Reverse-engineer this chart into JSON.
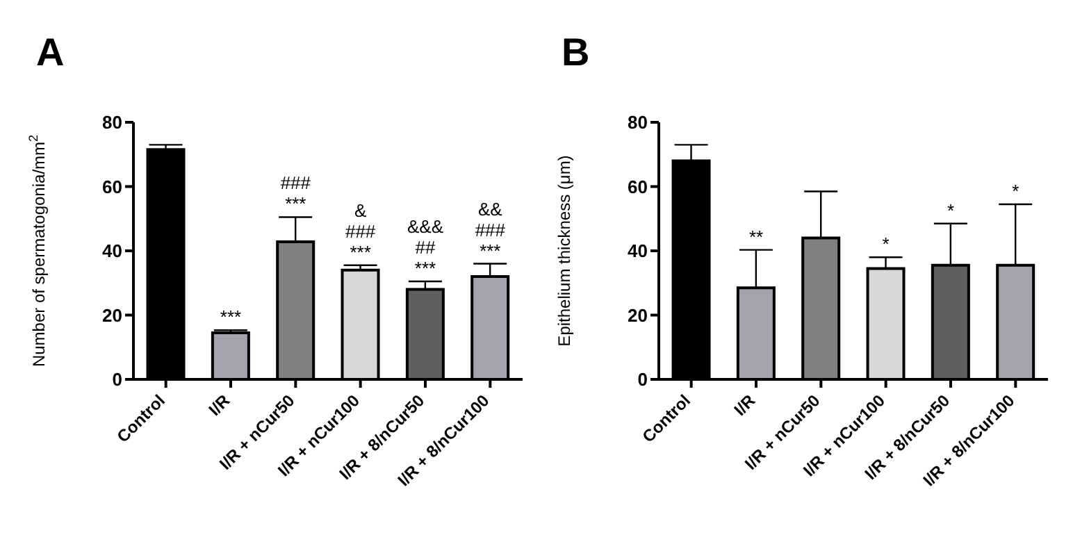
{
  "chart_data": [
    {
      "type": "bar",
      "title": "A",
      "ylabel": "Number of spermatogonia/mm$^{2}$",
      "categories": [
        "Control",
        "I/R",
        "I/R + nCur50",
        "I/R + nCur100",
        "I/R + 8/nCur50",
        "I/R + 8/nCur100"
      ],
      "values": [
        71.5,
        14.5,
        42.8,
        34,
        28,
        32
      ],
      "colors": [
        "#000000",
        "#a3a4b0",
        "#808080",
        "#d8d8d8",
        "#606060",
        "#a3a4b0"
      ],
      "errors": [
        [
          71.5,
          73
        ],
        [
          14.5,
          15.3
        ],
        [
          42.8,
          50.5
        ],
        [
          34,
          35.5
        ],
        [
          28,
          30.5
        ],
        [
          32,
          36
        ]
      ],
      "ylim": [
        0,
        80
      ],
      "yticks": [
        0,
        20,
        40,
        60,
        80
      ],
      "annotations": [
        {
          "text": "***",
          "x": "I/R",
          "y": 15.3
        },
        {
          "text": "***",
          "x": "I/R + nCur50",
          "y": 50.5
        },
        {
          "text": "###",
          "x": "I/R + nCur50",
          "y": 50.5
        },
        {
          "text": "***",
          "x": "I/R + nCur100",
          "y": 35.5
        },
        {
          "text": "###",
          "x": "I/R + nCur100",
          "y": 35.5
        },
        {
          "text": "&",
          "x": "I/R + nCur100",
          "y": 35.5
        },
        {
          "text": "***",
          "x": "I/R + 8/nCur50",
          "y": 30.5
        },
        {
          "text": "##",
          "x": "I/R + 8/nCur50",
          "y": 30.5
        },
        {
          "text": "&&&",
          "x": "I/R + 8/nCur50",
          "y": 30.5
        },
        {
          "text": "***",
          "x": "I/R + 8/nCur100",
          "y": 36
        },
        {
          "text": "###",
          "x": "I/R + 8/nCur100",
          "y": 36
        },
        {
          "text": "&&",
          "x": "I/R + 8/nCur100",
          "y": 36
        }
      ]
    },
    {
      "type": "bar",
      "title": "B",
      "ylabel": "Epithelium thickness (μm)",
      "categories": [
        "Control",
        "I/R",
        "I/R + nCur50",
        "I/R + nCur100",
        "I/R + 8/nCur50",
        "I/R + 8/nCur100"
      ],
      "values": [
        68,
        28.5,
        44,
        34.5,
        35.5,
        35.5
      ],
      "colors": [
        "#000000",
        "#a3a4b0",
        "#808080",
        "#d8d8d8",
        "#606060",
        "#a3a4b0"
      ],
      "errors": [
        [
          68,
          73
        ],
        [
          28.5,
          40.3
        ],
        [
          44,
          58.5
        ],
        [
          34.5,
          38
        ],
        [
          35.5,
          48.5
        ],
        [
          35.5,
          54.5
        ]
      ],
      "ylim": [
        0,
        80
      ],
      "yticks": [
        0,
        20,
        40,
        60,
        80
      ],
      "annotations": [
        {
          "text": "**",
          "x": "I/R",
          "y": 40.3
        },
        {
          "text": "*",
          "x": "I/R + nCur100",
          "y": 38
        },
        {
          "text": "*",
          "x": "I/R + 8/nCur50",
          "y": 48.5
        },
        {
          "text": "*",
          "x": "I/R + 8/nCur100",
          "y": 54.5
        }
      ]
    }
  ]
}
